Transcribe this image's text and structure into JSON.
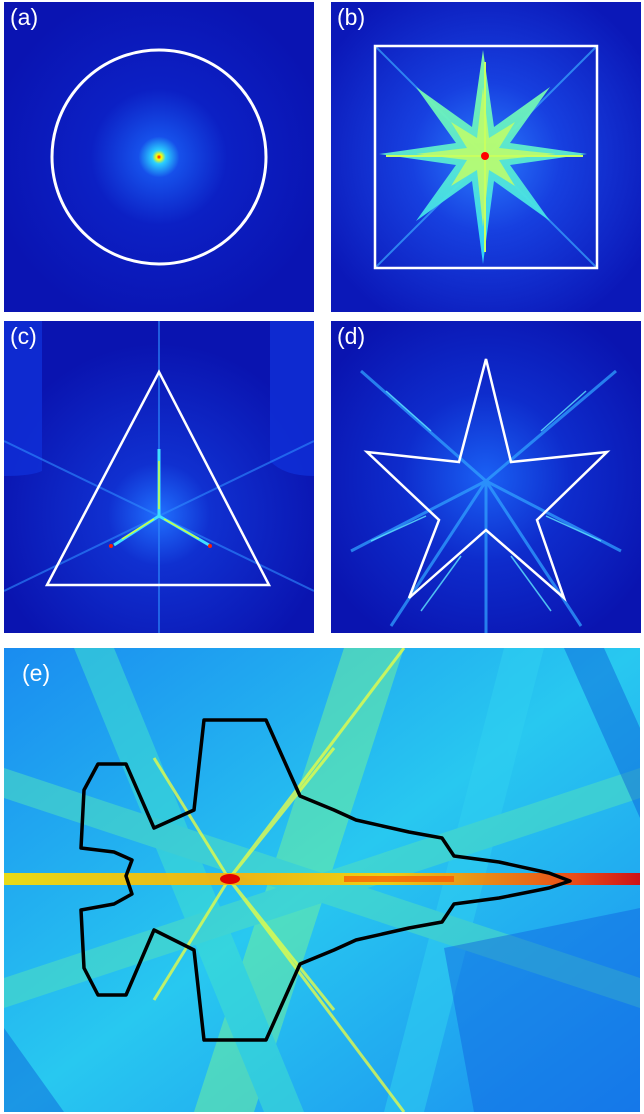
{
  "panels": {
    "a": {
      "label": "(a)",
      "shape": "circle"
    },
    "b": {
      "label": "(b)",
      "shape": "square"
    },
    "c": {
      "label": "(c)",
      "shape": "triangle"
    },
    "d": {
      "label": "(d)",
      "shape": "five-pointed star"
    },
    "e": {
      "label": "(e)",
      "shape": "aircraft silhouette"
    }
  },
  "colors": {
    "background_low": "#0a14b4",
    "mid": "#1e78ff",
    "high": "#ffff00",
    "peak": "#e00000",
    "outline_light": "#ffffff",
    "outline_dark": "#000000"
  }
}
